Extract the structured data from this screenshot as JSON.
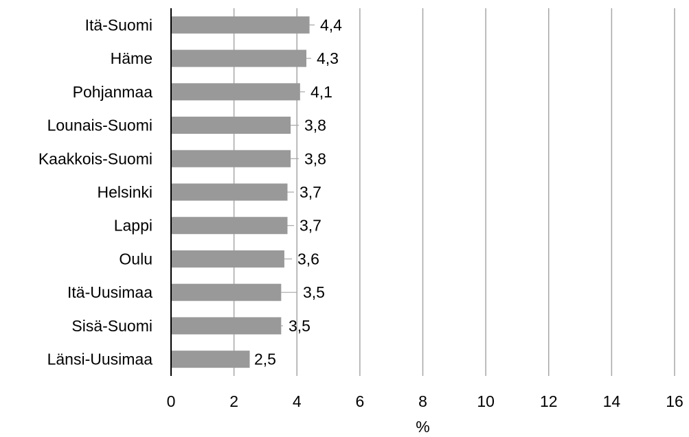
{
  "chart_data": {
    "type": "bar",
    "orientation": "horizontal",
    "categories": [
      "Itä-Suomi",
      "Häme",
      "Pohjanmaa",
      "Lounais-Suomi",
      "Kaakkois-Suomi",
      "Helsinki",
      "Lappi",
      "Oulu",
      "Itä-Uusimaa",
      "Sisä-Suomi",
      "Länsi-Uusimaa"
    ],
    "values": [
      4.4,
      4.3,
      4.1,
      3.8,
      3.8,
      3.7,
      3.7,
      3.6,
      3.5,
      3.5,
      2.5
    ],
    "data_labels": [
      "4,4",
      "4,3",
      "4,1",
      "3,8",
      "3,8",
      "3,7",
      "3,7",
      "3,6",
      "3,5",
      "3,5",
      "2,5"
    ],
    "xlabel": "%",
    "ylabel": "",
    "xlim": [
      0,
      16
    ],
    "x_ticks": [
      0,
      2,
      4,
      6,
      8,
      10,
      12,
      14,
      16
    ],
    "grid": "vertical",
    "legend": "none",
    "colors": {
      "bar": "#999999",
      "grid": "#a6a6a6",
      "axis": "#000000",
      "leader_line": "#a6a6a6",
      "text": "#000000"
    }
  }
}
